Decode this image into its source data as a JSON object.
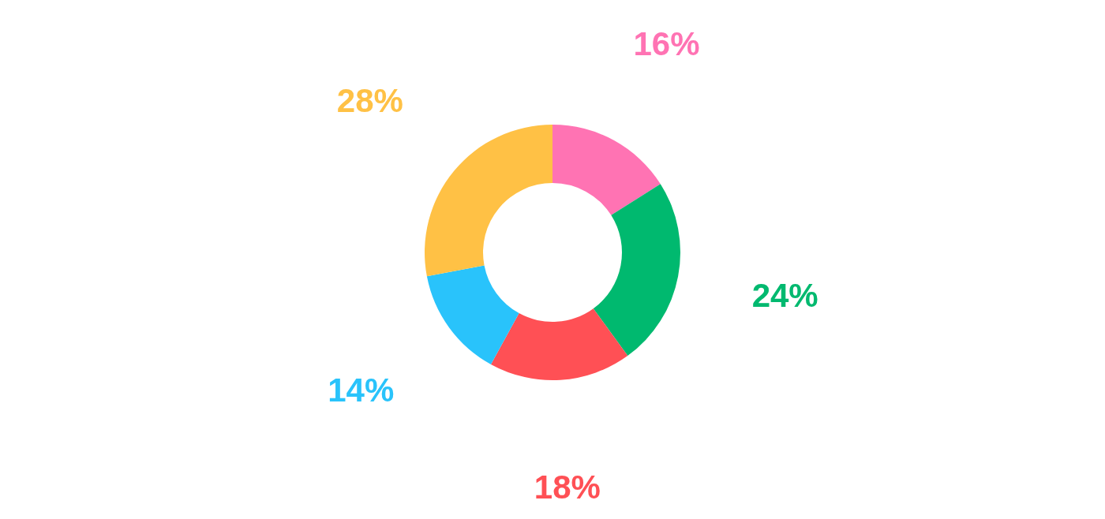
{
  "chart_data": {
    "type": "donut",
    "categories": [
      null,
      null,
      null,
      null,
      null
    ],
    "values": [
      16,
      24,
      18,
      14,
      28
    ],
    "colors": [
      "#ff73b3",
      "#00b96f",
      "#ff5055",
      "#29c3fb",
      "#ffc145"
    ],
    "value_labels": [
      "16%",
      "24%",
      "18%",
      "14%",
      "28%"
    ]
  }
}
